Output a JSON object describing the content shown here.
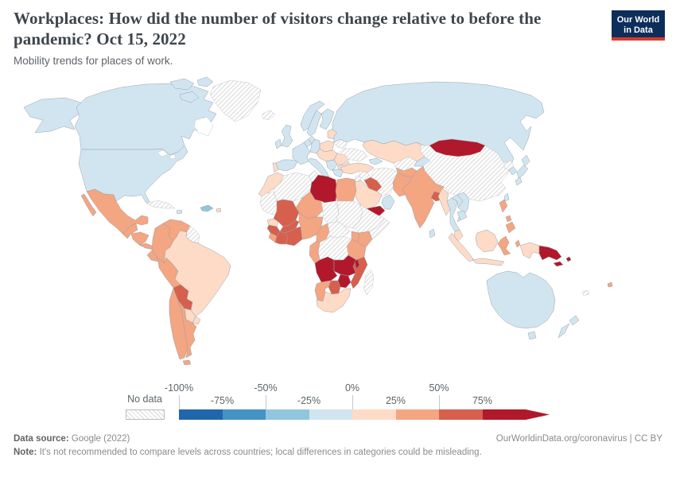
{
  "header": {
    "title": "Workplaces: How did the number of visitors change relative to before the pandemic? Oct 15, 2022",
    "subtitle": "Mobility trends for places of work.",
    "logo": {
      "line1": "Our World",
      "line2": "in Data",
      "bg": "#0d2e5a",
      "accent": "#d93a2b"
    }
  },
  "legend": {
    "no_data_label": "No data",
    "ticks_top": [
      "-100%",
      "-50%",
      "0%",
      "50%"
    ],
    "ticks_bottom": [
      "-75%",
      "-25%",
      "25%",
      "75%"
    ]
  },
  "footer": {
    "source_label": "Data source:",
    "source_value": " Google (2022)",
    "attribution": "OurWorldinData.org/coronavirus | CC BY",
    "note_label": "Note:",
    "note_value": " It's not recommended to compare levels across countries; local differences in categories could be misleading."
  },
  "chart_data": {
    "type": "choropleth",
    "title": "Workplaces: How did the number of visitors change relative to before the pandemic?",
    "date": "Oct 15, 2022",
    "metric": "Change in visitors to workplaces relative to pre-pandemic baseline (%)",
    "bin_labels": [
      "-100 to -75",
      "-75 to -50",
      "-50 to -25",
      "-25 to 0",
      "0 to 25",
      "25 to 50",
      "50 to 75",
      "75+"
    ],
    "bin_colors": [
      "#2166ac",
      "#4393c3",
      "#92c5de",
      "#d1e5f0",
      "#fddbc7",
      "#f4a582",
      "#d6604d",
      "#b2182b"
    ],
    "no_data_value": "no-data",
    "countries": {
      "united-states": 3,
      "canada": 3,
      "greenland": "no-data",
      "iceland": "no-data",
      "cuba": "no-data",
      "jamaica": 3,
      "hispaniola": 2,
      "puerto-rico": 4,
      "mexico": 5,
      "guatemala": 5,
      "honduras-nicaragua": 5,
      "costa-rica-panama": 5,
      "colombia": 5,
      "venezuela": 5,
      "guyanas": "no-data",
      "ecuador": 5,
      "peru": 5,
      "brazil": 4,
      "bolivia": 6,
      "paraguay": 4,
      "uruguay": 4,
      "chile": 5,
      "argentina": 5,
      "united-kingdom": 3,
      "ireland": 3,
      "norway": 3,
      "sweden": 3,
      "finland": 3,
      "denmark": 3,
      "baltics": 4,
      "poland": 4,
      "germany": 3,
      "benelux": 3,
      "france": 3,
      "spain": 3,
      "portugal": 4,
      "central-europe": 4,
      "italy": 3,
      "western-balkans": 3,
      "romania": 4,
      "bulgaria": 4,
      "greece": 3,
      "ukraine": "no-data",
      "belarus": "no-data",
      "russia": 3,
      "kazakhstan": 4,
      "caucasus": 3,
      "turkmenistan-uzbekistan": "no-data",
      "kyrgyzstan-tajikistan": 3,
      "turkey": 4,
      "syria": "no-data",
      "levant": "no-data",
      "iraq": 6,
      "iran": "no-data",
      "afghanistan": 5,
      "pakistan": 5,
      "saudi-arabia": 4,
      "yemen": 7,
      "oman": 3,
      "morocco": 4,
      "mauritania-western-sahara": "no-data",
      "algeria": "no-data",
      "tunisia": "no-data",
      "libya": 7,
      "egypt": 5,
      "mali": 6,
      "niger": 5,
      "chad": "no-data",
      "sudan": "no-data",
      "senegal": 4,
      "guinea": 6,
      "sierra-leone-liberia": 5,
      "cote-divoire": 6,
      "burkina-faso": 6,
      "ghana-togo-benin": 6,
      "nigeria": 5,
      "cameroon": 5,
      "central-african-republic": "no-data",
      "ethiopia": "no-data",
      "somalia": "no-data",
      "uganda": 5,
      "kenya": 5,
      "tanzania": 5,
      "dr-congo": "no-data",
      "congo-gabon": 5,
      "angola": 7,
      "zambia": 7,
      "malawi": 7,
      "mozambique": 6,
      "zimbabwe": 7,
      "botswana": 6,
      "namibia": 5,
      "south-africa": 4,
      "madagascar": "no-data",
      "mongolia": 7,
      "china": "no-data",
      "north-korea": "no-data",
      "south-korea": 3,
      "japan": 3,
      "taiwan": 3,
      "nepal": 4,
      "india": 5,
      "bangladesh": 6,
      "myanmar": 4,
      "thailand": 3,
      "laos": 3,
      "vietnam": 3,
      "cambodia": 3,
      "malaysia-peninsula": 4,
      "sumatra": 4,
      "borneo": 4,
      "java": 4,
      "sulawesi": 5,
      "moluccas": 5,
      "philippines": 5,
      "sri-lanka": 3,
      "west-papua": 4,
      "papua-new-guinea": 7,
      "solomon-islands": 7,
      "australia": 3,
      "tasmania": 3,
      "new-zealand": 3,
      "fiji": 5,
      "new-caledonia": "no-data"
    }
  }
}
